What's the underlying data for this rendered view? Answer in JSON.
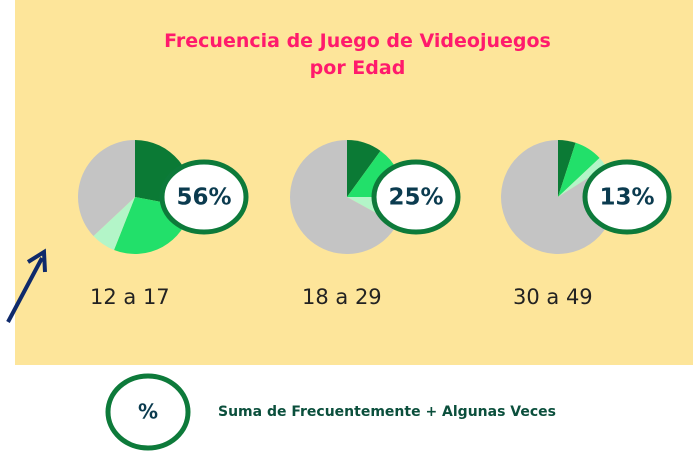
{
  "chart_data": {
    "type": "pie",
    "title": "Frecuencia de Juego de Videojuegos por Edad",
    "colors": [
      "#0b7a35",
      "#22e06a",
      "#b3f5c8",
      "#c4c4c4"
    ],
    "pies": [
      {
        "category": "12 a 17",
        "values": [
          28,
          28,
          7,
          37
        ],
        "highlight": 56,
        "highlight_label": "56%"
      },
      {
        "category": "18 a 29",
        "values": [
          10,
          15,
          8,
          67
        ],
        "highlight": 25,
        "highlight_label": "25%"
      },
      {
        "category": "30 a 49",
        "values": [
          5,
          8,
          3,
          84
        ],
        "highlight": 13,
        "highlight_label": "13%"
      }
    ],
    "legend": {
      "symbol": "%",
      "text": "Suma de Frecuentemente + Algunas Veces"
    }
  }
}
